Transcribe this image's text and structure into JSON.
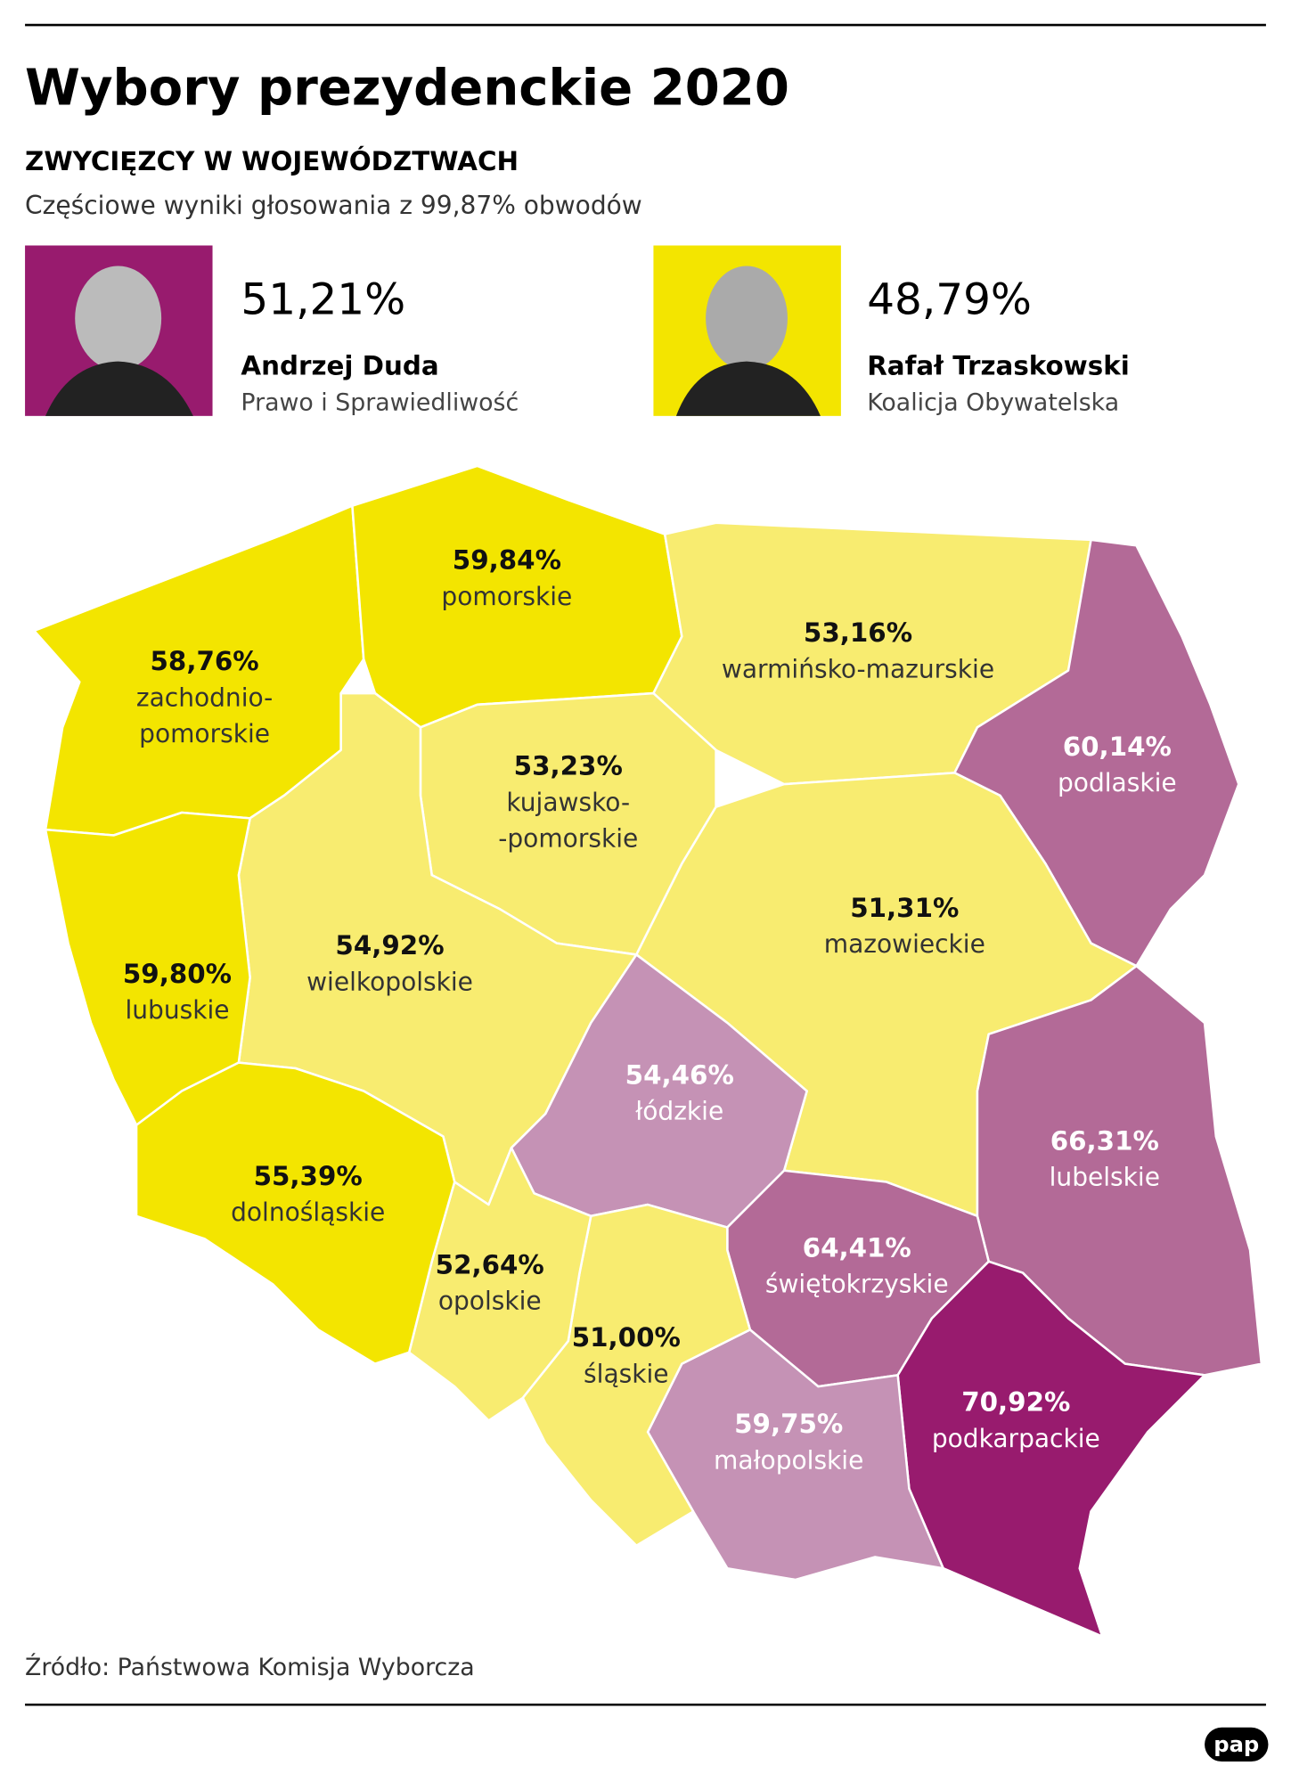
{
  "header": {
    "title": "Wybory prezydenckie 2020",
    "subtitle": "ZWYCIĘZCY W WOJEWÓDZTWACH",
    "note": "Częściowe wyniki głosowania z 99,87% obwodów"
  },
  "candidates": [
    {
      "percent": "51,21%",
      "name": "Andrzej Duda",
      "party": "Prawo i Sprawiedliwość",
      "color": "#981b6e"
    },
    {
      "percent": "48,79%",
      "name": "Rafał Trzaskowski",
      "party": "Koalicja Obywatelska",
      "color": "#f3e500"
    }
  ],
  "regions": [
    {
      "value": "58,76%",
      "name": "zachodnio-",
      "name2": "pomorskie",
      "color": "#f3e500"
    },
    {
      "value": "59,84%",
      "name": "pomorskie",
      "color": "#f3e500"
    },
    {
      "value": "53,16%",
      "name": "warmińsko-mazurskie",
      "color": "#f8ec70"
    },
    {
      "value": "60,14%",
      "name": "podlaskie",
      "color": "#b36a97"
    },
    {
      "value": "53,23%",
      "name": "kujawsko-",
      "name2": "-pomorskie",
      "color": "#f8ec70"
    },
    {
      "value": "51,31%",
      "name": "mazowieckie",
      "color": "#f8ec70"
    },
    {
      "value": "54,92%",
      "name": "wielkopolskie",
      "color": "#f8ec70"
    },
    {
      "value": "59,80%",
      "name": "lubuskie",
      "color": "#f3e500"
    },
    {
      "value": "54,46%",
      "name": "łódzkie",
      "color": "#c592b5"
    },
    {
      "value": "66,31%",
      "name": "lubelskie",
      "color": "#b36a97"
    },
    {
      "value": "64,41%",
      "name": "świętokrzyskie",
      "color": "#b36a97"
    },
    {
      "value": "70,92%",
      "name": "podkarpackie",
      "color": "#981b6e"
    },
    {
      "value": "59,75%",
      "name": "małopolskie",
      "color": "#c592b5"
    },
    {
      "value": "51,00%",
      "name": "śląskie",
      "color": "#f8ec70"
    },
    {
      "value": "52,64%",
      "name": "opolskie",
      "color": "#f8ec70"
    },
    {
      "value": "55,39%",
      "name": "dolnośląskie",
      "color": "#f3e500"
    }
  ],
  "footer": {
    "source": "Źródło: Państwowa Komisja Wyborcza",
    "logo": "pap"
  }
}
